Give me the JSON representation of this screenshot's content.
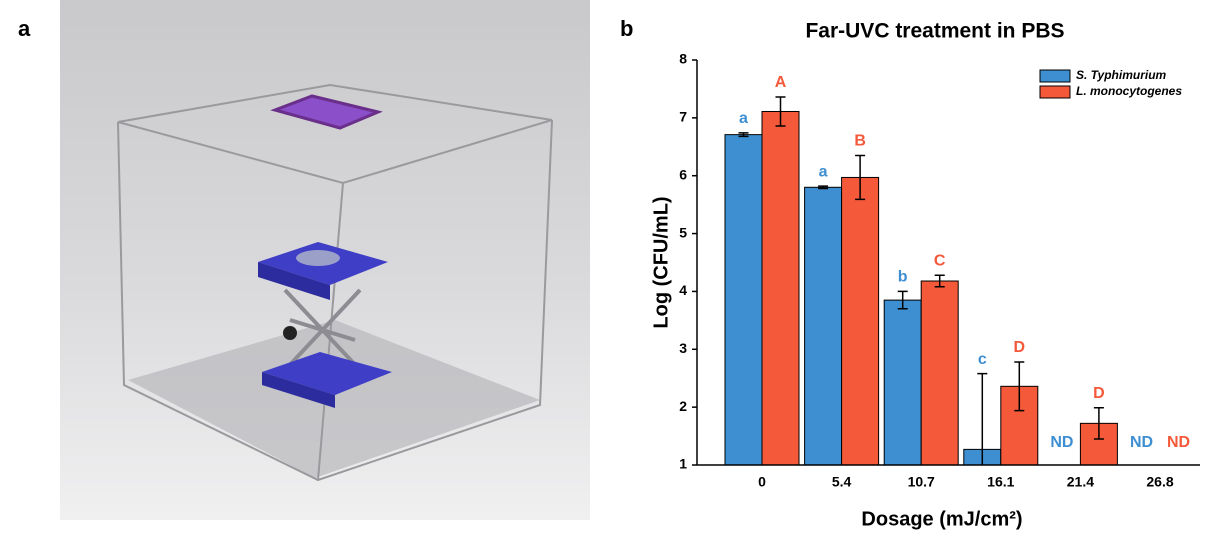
{
  "panel_labels": [
    "a",
    "b"
  ],
  "chart_data": {
    "type": "bar",
    "title": "Far-UVC treatment in PBS",
    "x_label": "Dosage (mJ/cm²)",
    "y_label": "Log (CFU/mL)",
    "categories": [
      "0",
      "5.4",
      "10.7",
      "16.1",
      "21.4",
      "26.8"
    ],
    "series": [
      {
        "name": "S. Typhimurium",
        "color": "#3d8fd1",
        "values": [
          6.71,
          5.8,
          3.85,
          1.27,
          null,
          null
        ],
        "errors": [
          0.03,
          0.02,
          0.15,
          1.31,
          null,
          null
        ],
        "annotations": [
          "a",
          "a",
          "b",
          "c",
          "ND",
          "ND"
        ]
      },
      {
        "name": "L. monocytogenes",
        "color": "#f4593a",
        "values": [
          7.11,
          5.97,
          4.18,
          2.36,
          1.72,
          null
        ],
        "errors": [
          0.25,
          0.38,
          0.1,
          0.42,
          0.27,
          null
        ],
        "annotations": [
          "A",
          "B",
          "C",
          "D",
          "D",
          "ND"
        ]
      }
    ],
    "ylim": [
      1,
      8
    ],
    "yticks": [
      1,
      2,
      3,
      4,
      5,
      6,
      7,
      8
    ],
    "legend": "upper right"
  }
}
